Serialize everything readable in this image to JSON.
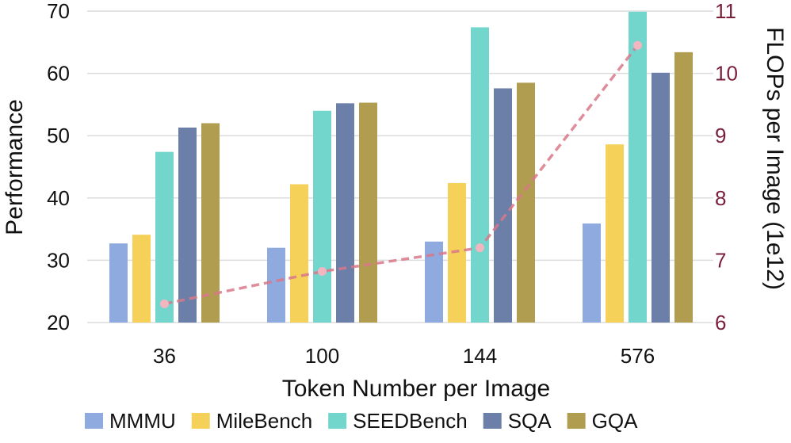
{
  "chart_data": {
    "type": "bar",
    "xlabel": "Token Number per Image",
    "ylabel": "Performance",
    "y2label": "FLOPs per Image (1e12)",
    "ylim": [
      20,
      70
    ],
    "y2lim": [
      6,
      11
    ],
    "yticks": [
      "20",
      "30",
      "40",
      "50",
      "60",
      "70"
    ],
    "y2ticks": [
      "6",
      "7",
      "8",
      "9",
      "10",
      "11"
    ],
    "grid": true,
    "legend_position": "bottom",
    "categories": [
      "36",
      "100",
      "144",
      "576"
    ],
    "series": [
      {
        "name": "MMMU",
        "color": "#8eaadf",
        "values": [
          32.7,
          32.0,
          33.0,
          35.9
        ]
      },
      {
        "name": "MileBench",
        "color": "#f5d15a",
        "values": [
          34.1,
          42.2,
          42.4,
          48.6
        ]
      },
      {
        "name": "SEEDBench",
        "color": "#72d6cc",
        "values": [
          47.4,
          54.0,
          67.4,
          69.9
        ]
      },
      {
        "name": "SQA",
        "color": "#6b7fa8",
        "values": [
          51.3,
          55.2,
          57.6,
          60.1
        ]
      },
      {
        "name": "GQA",
        "color": "#b19d50",
        "values": [
          52.0,
          55.3,
          58.5,
          63.4
        ]
      }
    ],
    "line_series": {
      "axis": "right",
      "style": "dashed",
      "line_color": "#d9788a",
      "marker_color": "#f2b6c0",
      "values": [
        6.3,
        6.82,
        7.2,
        10.45
      ]
    }
  }
}
